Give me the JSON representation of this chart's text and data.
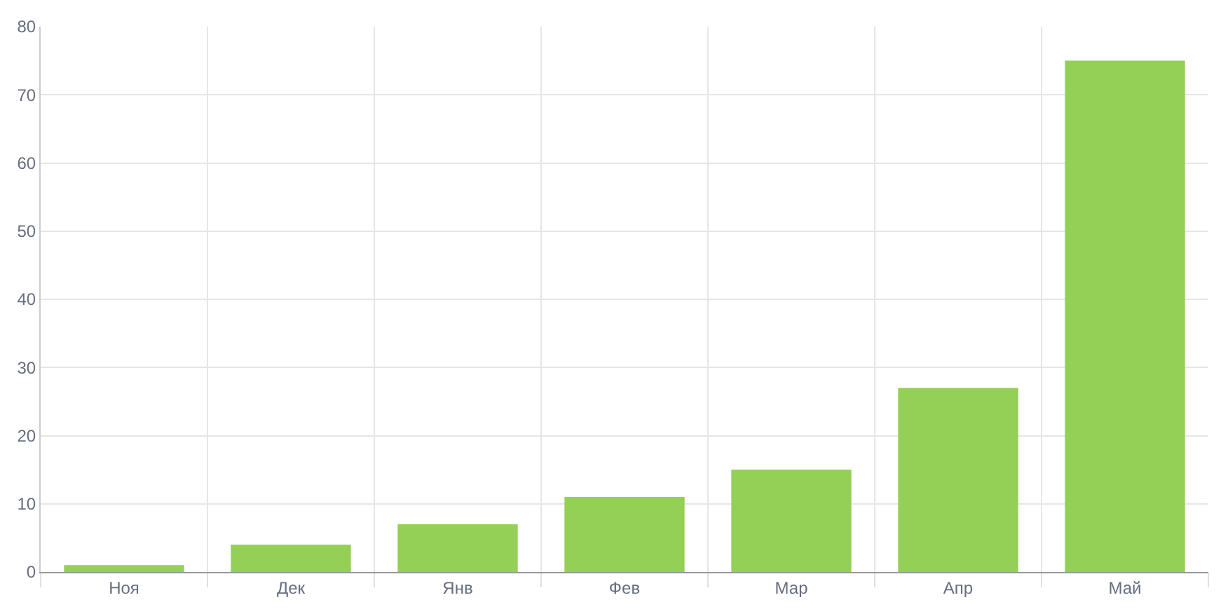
{
  "chart_data": {
    "type": "bar",
    "categories": [
      "Ноя",
      "Дек",
      "Янв",
      "Фев",
      "Мар",
      "Апр",
      "Май"
    ],
    "values": [
      1,
      4,
      7,
      11,
      15,
      27,
      75
    ],
    "color": "#94d055",
    "ylim": [
      0,
      80
    ],
    "yticks": [
      0,
      10,
      20,
      30,
      40,
      50,
      60,
      70,
      80
    ],
    "grid": true,
    "legend": false
  }
}
